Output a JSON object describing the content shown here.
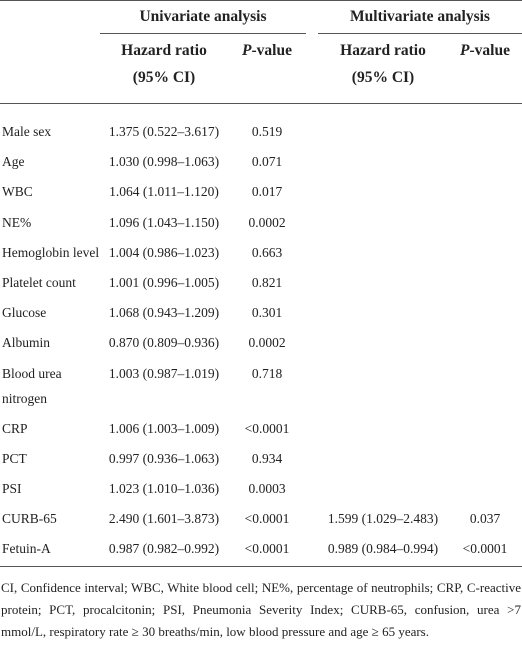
{
  "table": {
    "group_headers": [
      "Univariate analysis",
      "Multivariate analysis"
    ],
    "column_headers": [
      {
        "main": "Hazard ratio",
        "sub": "(95% CI)"
      },
      {
        "main": "P-value"
      },
      {
        "main": "Hazard ratio",
        "sub": "(95% CI)"
      },
      {
        "main": "P-value"
      }
    ],
    "rows": [
      [
        "Male sex",
        "1.375 (0.522–3.617)",
        "0.519",
        null,
        null
      ],
      [
        "Age",
        "1.030 (0.998–1.063)",
        "0.071",
        null,
        null
      ],
      [
        "WBC",
        "1.064 (1.011–1.120)",
        "0.017",
        null,
        null
      ],
      [
        "NE%",
        "1.096 (1.043–1.150)",
        "0.0002",
        null,
        null
      ],
      [
        "Hemoglobin level",
        "1.004 (0.986–1.023)",
        "0.663",
        null,
        null
      ],
      [
        "Platelet count",
        "1.001 (0.996–1.005)",
        "0.821",
        null,
        null
      ],
      [
        "Glucose",
        "1.068 (0.943–1.209)",
        "0.301",
        null,
        null
      ],
      [
        "Albumin",
        "0.870 (0.809–0.936)",
        "0.0002",
        null,
        null
      ],
      [
        "Blood urea nitrogen",
        "1.003 (0.987–1.019)",
        "0.718",
        null,
        null
      ],
      [
        "CRP",
        "1.006 (1.003–1.009)",
        "<0.0001",
        null,
        null
      ],
      [
        "PCT",
        "0.997 (0.936–1.063)",
        "0.934",
        null,
        null
      ],
      [
        "PSI",
        "1.023 (1.010–1.036)",
        "0.0003",
        null,
        null
      ],
      [
        "CURB-65",
        "2.490 (1.601–3.873)",
        "<0.0001",
        "1.599 (1.029–2.483)",
        "0.037"
      ],
      [
        "Fetuin-A",
        "0.987 (0.982–0.992)",
        "<0.0001",
        "0.989 (0.984–0.994)",
        "<0.0001"
      ]
    ],
    "footnote": "CI, Confidence interval; WBC, White blood cell; NE%, percentage of neutrophils; CRP, C-reactive protein; PCT, procalcitonin; PSI, Pneumonia Severity Index; CURB-65, confusion, urea >7 mmol/L, respiratory rate ≥ 30 breaths/min, low blood pressure and age ≥ 65 years."
  }
}
